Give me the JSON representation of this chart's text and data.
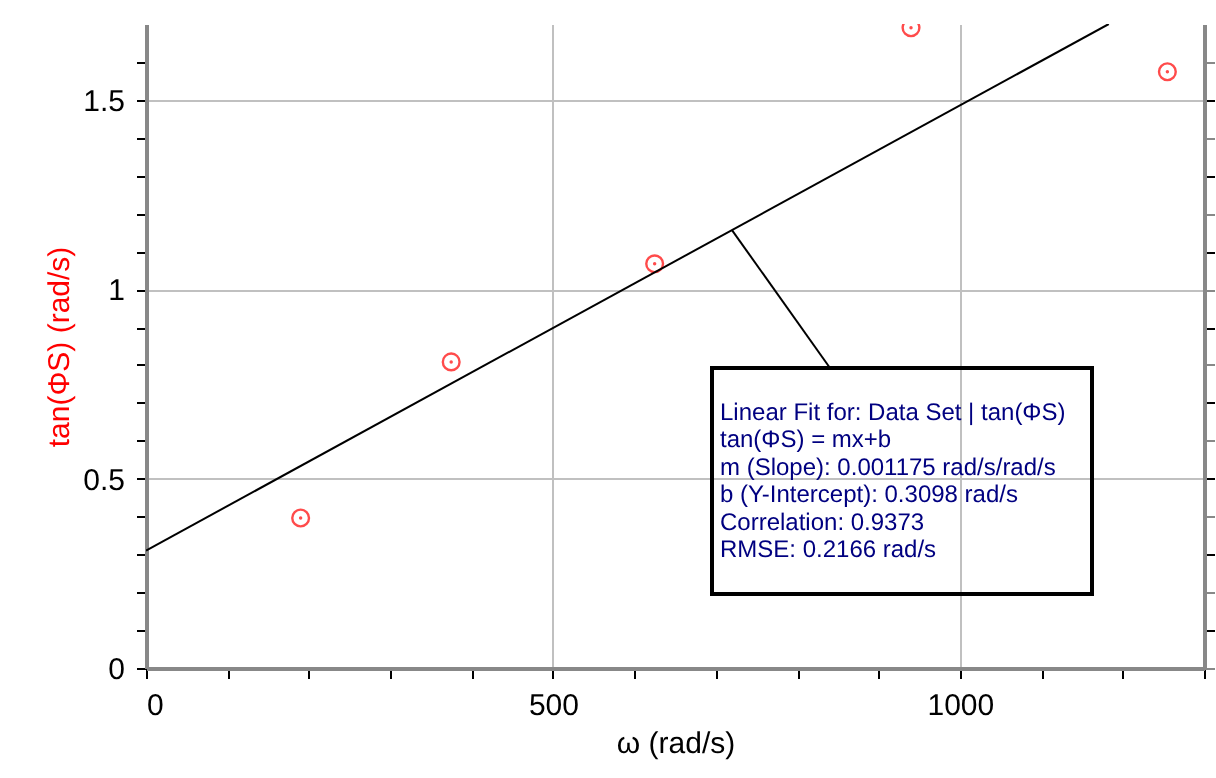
{
  "chart_data": {
    "type": "scatter",
    "xlabel": "ω (rad/s)",
    "ylabel": "tan(ΦS) (rad/s)",
    "x": [
      190,
      375,
      625,
      940,
      1255
    ],
    "series": [
      {
        "color": "#ff0000",
        "marker": "circle",
        "values": [
          0.396,
          0.808,
          1.067,
          1.69,
          1.574
        ]
      },
      {
        "type": "line",
        "color": "#000000",
        "marker": "none",
        "line_style": "solid",
        "x": [
          0,
          1183
        ],
        "values": [
          0.31,
          1.7
        ]
      }
    ],
    "xlim": [
      0,
      1300
    ],
    "xticks": [
      0,
      {
        "value": 100,
        "label": null
      },
      {
        "value": 200,
        "label": null
      },
      {
        "value": 300,
        "label": null
      },
      {
        "value": 400,
        "label": null
      },
      500,
      {
        "value": 600,
        "label": null
      },
      {
        "value": 700,
        "label": null
      },
      {
        "value": 800,
        "label": null
      },
      {
        "value": 900,
        "label": null
      },
      1000,
      {
        "value": 1100,
        "label": null
      },
      {
        "value": 1200,
        "label": null
      },
      {
        "value": 1300,
        "label": null
      }
    ],
    "ylim": [
      0,
      1.7
    ],
    "yticks": [
      0,
      {
        "value": 0.1,
        "label": null
      },
      {
        "value": 0.2,
        "label": null
      },
      {
        "value": 0.3,
        "label": null
      },
      {
        "value": 0.4,
        "label": null
      },
      0.5,
      {
        "value": 0.6,
        "label": null
      },
      {
        "value": 0.7,
        "label": null
      },
      {
        "value": 0.8,
        "label": null
      },
      {
        "value": 0.9,
        "label": null
      },
      1,
      {
        "value": 1.1,
        "label": null
      },
      {
        "value": 1.2,
        "label": null
      },
      {
        "value": 1.3,
        "label": null
      },
      {
        "value": 1.4,
        "label": null
      },
      1.5,
      {
        "value": 1.6,
        "label": null
      }
    ],
    "grid": true,
    "annotations": [
      {
        "text": "Linear Fit for: Data Set | tan(ΦS)",
        "x": 720,
        "y": 1.156
      },
      "tan(ΦS) = mx+b",
      "m (Slope): 0.001175 rad/s/rad/s",
      "b (Y-Intercept): 0.3098 rad/s",
      "Correlation: 0.9373",
      "RMSE: 0.2166 rad/s"
    ]
  }
}
